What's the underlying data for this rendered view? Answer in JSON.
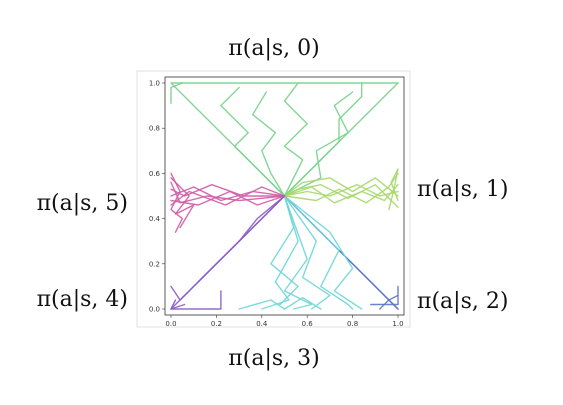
{
  "policy_labels": {
    "top": "π(a|s, 0)",
    "right_upper": "π(a|s, 1)",
    "right_lower": "π(a|s, 2)",
    "bottom": "π(a|s, 3)",
    "left_lower": "π(a|s, 4)",
    "left_upper": "π(a|s, 5)"
  },
  "chart_data": {
    "type": "line",
    "title": "",
    "xlabel": "",
    "ylabel": "",
    "xlim": [
      0,
      1
    ],
    "ylim": [
      0,
      1
    ],
    "x_ticks": [
      "0.0",
      "0.2",
      "0.4",
      "0.6",
      "0.8",
      "1.0"
    ],
    "y_ticks": [
      "0.0",
      "0.2",
      "0.4",
      "0.6",
      "0.8",
      "1.0"
    ],
    "grid": false,
    "series": [
      {
        "color": "#74d38a",
        "paths": [
          [
            [
              0.5,
              0.5
            ],
            [
              0.3,
              0.7
            ],
            [
              0.1,
              0.9
            ],
            [
              0.0,
              1.0
            ],
            [
              1.0,
              1.0
            ]
          ],
          [
            [
              0.5,
              0.5
            ],
            [
              0.7,
              0.7
            ],
            [
              0.9,
              0.9
            ],
            [
              1.0,
              1.0
            ]
          ],
          [
            [
              0.5,
              0.5
            ],
            [
              0.62,
              0.62
            ],
            [
              0.74,
              0.74
            ],
            [
              0.74,
              0.84
            ],
            [
              0.84,
              0.94
            ],
            [
              0.84,
              1.0
            ]
          ],
          [
            [
              0.5,
              0.5
            ],
            [
              0.38,
              0.62
            ],
            [
              0.28,
              0.72
            ],
            [
              0.34,
              0.78
            ],
            [
              0.22,
              0.9
            ],
            [
              0.3,
              0.98
            ]
          ],
          [
            [
              0.5,
              0.5
            ],
            [
              0.58,
              0.66
            ],
            [
              0.5,
              0.72
            ],
            [
              0.6,
              0.82
            ],
            [
              0.5,
              0.92
            ],
            [
              0.56,
              1.0
            ]
          ],
          [
            [
              0.0,
              0.91
            ],
            [
              0.0,
              0.98
            ],
            [
              0.05,
              1.0
            ]
          ],
          [
            [
              0.5,
              0.5
            ],
            [
              0.44,
              0.6
            ],
            [
              0.4,
              0.7
            ],
            [
              0.46,
              0.78
            ],
            [
              0.36,
              0.86
            ],
            [
              0.42,
              0.96
            ]
          ],
          [
            [
              0.5,
              0.5
            ],
            [
              0.66,
              0.58
            ],
            [
              0.64,
              0.7
            ],
            [
              0.78,
              0.78
            ],
            [
              0.72,
              0.9
            ],
            [
              0.8,
              0.96
            ]
          ]
        ]
      },
      {
        "color": "#a6d86a",
        "paths": [
          [
            [
              0.5,
              0.5
            ],
            [
              0.6,
              0.52
            ],
            [
              0.7,
              0.5
            ],
            [
              0.82,
              0.55
            ],
            [
              0.92,
              0.5
            ],
            [
              1.0,
              0.52
            ]
          ],
          [
            [
              0.5,
              0.5
            ],
            [
              0.58,
              0.56
            ],
            [
              0.7,
              0.58
            ],
            [
              0.8,
              0.52
            ],
            [
              0.9,
              0.58
            ],
            [
              1.0,
              0.5
            ]
          ],
          [
            [
              0.5,
              0.5
            ],
            [
              0.64,
              0.48
            ],
            [
              0.74,
              0.53
            ],
            [
              0.86,
              0.47
            ],
            [
              0.96,
              0.54
            ],
            [
              1.0,
              0.6
            ]
          ],
          [
            [
              0.5,
              0.5
            ],
            [
              0.62,
              0.54
            ],
            [
              0.72,
              0.47
            ],
            [
              0.84,
              0.52
            ],
            [
              0.94,
              0.48
            ],
            [
              1.0,
              0.55
            ]
          ],
          [
            [
              0.5,
              0.5
            ],
            [
              0.56,
              0.53
            ],
            [
              0.66,
              0.55
            ],
            [
              0.78,
              0.49
            ],
            [
              0.9,
              0.55
            ],
            [
              1.0,
              0.45
            ]
          ],
          [
            [
              0.96,
              0.44
            ],
            [
              0.98,
              0.52
            ],
            [
              1.0,
              0.62
            ],
            [
              0.97,
              0.56
            ],
            [
              1.0,
              0.48
            ]
          ]
        ]
      },
      {
        "color": "#5b74c9",
        "paths": [
          [
            [
              0.5,
              0.5
            ],
            [
              0.7,
              0.3
            ],
            [
              0.9,
              0.1
            ],
            [
              1.0,
              0.0
            ]
          ],
          [
            [
              0.5,
              0.5
            ],
            [
              0.66,
              0.34
            ],
            [
              0.82,
              0.18
            ],
            [
              0.96,
              0.04
            ],
            [
              1.0,
              0.06
            ]
          ],
          [
            [
              0.92,
              0.0
            ],
            [
              0.96,
              0.04
            ],
            [
              1.0,
              0.0
            ]
          ],
          [
            [
              0.88,
              0.02
            ],
            [
              1.0,
              0.02
            ],
            [
              1.0,
              0.1
            ]
          ]
        ]
      },
      {
        "color": "#6ed6d6",
        "paths": [
          [
            [
              0.5,
              0.5
            ],
            [
              0.56,
              0.3
            ],
            [
              0.46,
              0.12
            ],
            [
              0.52,
              0.04
            ],
            [
              0.4,
              0.0
            ]
          ],
          [
            [
              0.5,
              0.5
            ],
            [
              0.64,
              0.3
            ],
            [
              0.58,
              0.14
            ],
            [
              0.7,
              0.06
            ],
            [
              0.62,
              0.0
            ]
          ],
          [
            [
              0.5,
              0.5
            ],
            [
              0.74,
              0.26
            ],
            [
              0.66,
              0.1
            ],
            [
              0.78,
              0.02
            ],
            [
              0.8,
              0.0
            ]
          ],
          [
            [
              0.5,
              0.5
            ],
            [
              0.6,
              0.22
            ],
            [
              0.5,
              0.08
            ],
            [
              0.62,
              0.02
            ],
            [
              0.54,
              0.0
            ]
          ],
          [
            [
              0.5,
              0.5
            ],
            [
              0.7,
              0.34
            ],
            [
              0.8,
              0.18
            ],
            [
              0.72,
              0.08
            ],
            [
              0.84,
              0.0
            ]
          ],
          [
            [
              0.3,
              0.0
            ],
            [
              0.44,
              0.04
            ],
            [
              0.5,
              0.0
            ],
            [
              0.58,
              0.05
            ],
            [
              0.66,
              0.0
            ]
          ],
          [
            [
              0.5,
              0.5
            ],
            [
              0.54,
              0.36
            ],
            [
              0.44,
              0.2
            ],
            [
              0.56,
              0.1
            ],
            [
              0.48,
              0.02
            ]
          ]
        ]
      },
      {
        "color": "#8a5bc4",
        "paths": [
          [
            [
              0.5,
              0.5
            ],
            [
              0.3,
              0.3
            ],
            [
              0.1,
              0.1
            ],
            [
              0.0,
              0.0
            ]
          ],
          [
            [
              0.5,
              0.5
            ],
            [
              0.34,
              0.34
            ],
            [
              0.18,
              0.18
            ],
            [
              0.04,
              0.04
            ],
            [
              0.0,
              0.1
            ]
          ],
          [
            [
              0.0,
              0.0
            ],
            [
              0.14,
              0.0
            ],
            [
              0.22,
              0.0
            ],
            [
              0.22,
              0.08
            ]
          ],
          [
            [
              0.02,
              0.04
            ],
            [
              0.0,
              0.0
            ],
            [
              0.06,
              0.02
            ]
          ],
          [
            [
              0.5,
              0.5
            ],
            [
              0.38,
              0.4
            ],
            [
              0.3,
              0.3
            ],
            [
              0.2,
              0.2
            ],
            [
              0.12,
              0.12
            ]
          ]
        ]
      },
      {
        "color": "#d25aa5",
        "paths": [
          [
            [
              0.5,
              0.5
            ],
            [
              0.36,
              0.52
            ],
            [
              0.22,
              0.48
            ],
            [
              0.1,
              0.54
            ],
            [
              0.0,
              0.5
            ]
          ],
          [
            [
              0.5,
              0.5
            ],
            [
              0.38,
              0.46
            ],
            [
              0.26,
              0.52
            ],
            [
              0.12,
              0.46
            ],
            [
              0.0,
              0.48
            ]
          ],
          [
            [
              0.5,
              0.5
            ],
            [
              0.32,
              0.5
            ],
            [
              0.18,
              0.55
            ],
            [
              0.06,
              0.5
            ],
            [
              0.0,
              0.53
            ]
          ],
          [
            [
              0.5,
              0.5
            ],
            [
              0.4,
              0.54
            ],
            [
              0.24,
              0.46
            ],
            [
              0.08,
              0.52
            ],
            [
              0.0,
              0.46
            ]
          ],
          [
            [
              0.0,
              0.6
            ],
            [
              0.04,
              0.52
            ],
            [
              0.0,
              0.44
            ],
            [
              0.05,
              0.4
            ],
            [
              0.02,
              0.34
            ]
          ],
          [
            [
              0.5,
              0.5
            ],
            [
              0.3,
              0.48
            ],
            [
              0.16,
              0.5
            ],
            [
              0.04,
              0.47
            ],
            [
              0.0,
              0.56
            ]
          ],
          [
            [
              0.0,
              0.58
            ],
            [
              0.08,
              0.5
            ],
            [
              0.02,
              0.42
            ],
            [
              0.1,
              0.46
            ],
            [
              0.04,
              0.36
            ]
          ]
        ]
      }
    ]
  }
}
